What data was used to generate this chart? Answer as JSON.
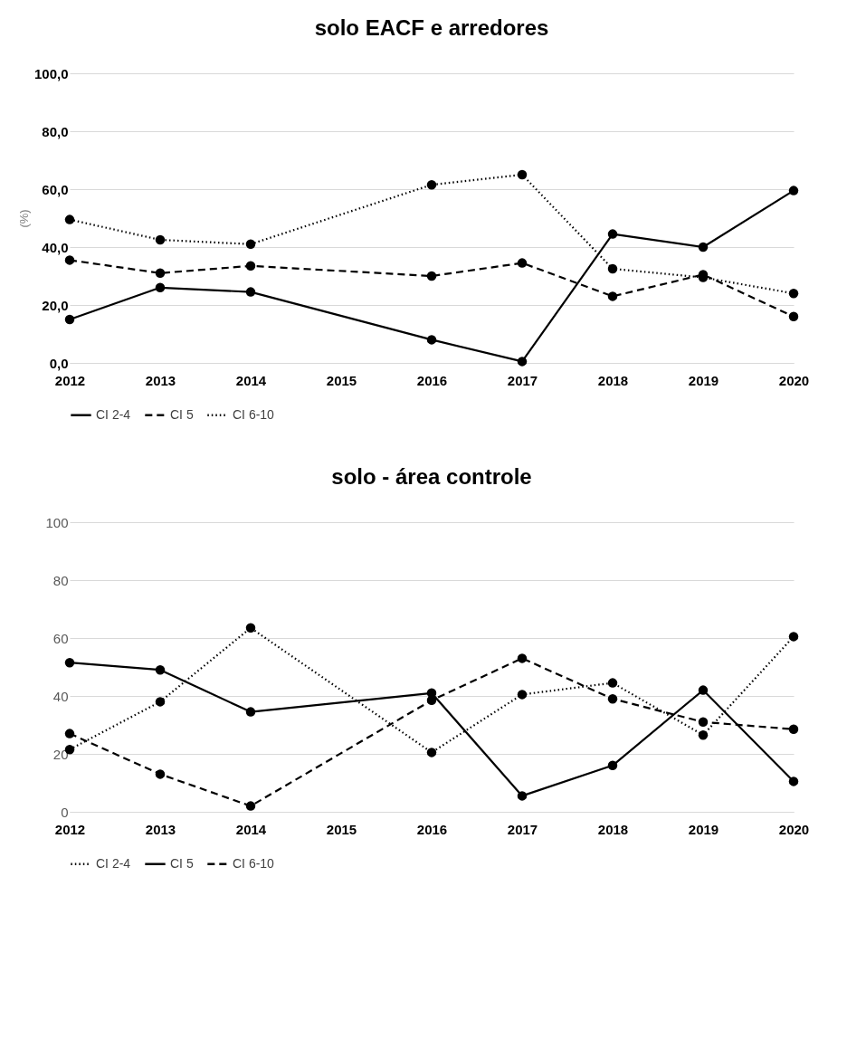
{
  "chart_data": [
    {
      "type": "line",
      "title": "solo EACF e arredores",
      "ylabel": "(%)",
      "categories": [
        "2012",
        "2013",
        "2014",
        "2015",
        "2016",
        "2017",
        "2018",
        "2019",
        "2020"
      ],
      "series": [
        {
          "name": "CI 2-4",
          "color": "#000000",
          "line_style": "solid",
          "values": [
            15,
            26,
            24.5,
            null,
            8,
            0.5,
            44.5,
            40,
            59.5
          ]
        },
        {
          "name": "CI 5",
          "color": "#000000",
          "line_style": "dashed",
          "values": [
            35.5,
            31,
            33.5,
            null,
            30,
            34.5,
            23,
            30.5,
            16
          ]
        },
        {
          "name": "CI 6-10",
          "color": "#000000",
          "line_style": "dotted",
          "values": [
            49.5,
            42.5,
            41,
            null,
            61.5,
            65,
            32.5,
            29.5,
            24
          ]
        }
      ],
      "ylim": [
        0,
        100
      ],
      "yticks": [
        {
          "value": 0,
          "label": "0,0"
        },
        {
          "value": 20,
          "label": "20,0"
        },
        {
          "value": 40,
          "label": "40,0"
        },
        {
          "value": 60,
          "label": "60,0"
        },
        {
          "value": 80,
          "label": "80,0"
        },
        {
          "value": 100,
          "label": "100,0"
        }
      ],
      "grid": "y",
      "legend": "bottom",
      "marker": "circle"
    },
    {
      "type": "line",
      "title": "solo - área controle",
      "categories": [
        "2012",
        "2013",
        "2014",
        "2015",
        "2016",
        "2017",
        "2018",
        "2019",
        "2020"
      ],
      "series": [
        {
          "name": "CI 2-4",
          "color": "#000000",
          "line_style": "dotted",
          "values": [
            21.5,
            38,
            63.5,
            null,
            20.5,
            40.5,
            44.5,
            26.5,
            60.5
          ]
        },
        {
          "name": "CI 5",
          "color": "#000000",
          "line_style": "solid",
          "values": [
            51.5,
            49,
            34.5,
            null,
            41,
            5.5,
            16,
            42,
            10.5
          ]
        },
        {
          "name": "CI 6-10",
          "color": "#000000",
          "line_style": "dashed",
          "values": [
            27,
            13,
            2,
            null,
            38.5,
            53,
            39,
            31,
            28.5
          ]
        }
      ],
      "ylim": [
        0,
        100
      ],
      "yticks": [
        0,
        20,
        40,
        60,
        80,
        100
      ],
      "grid": "y",
      "legend": "bottom",
      "marker": "circle"
    }
  ]
}
